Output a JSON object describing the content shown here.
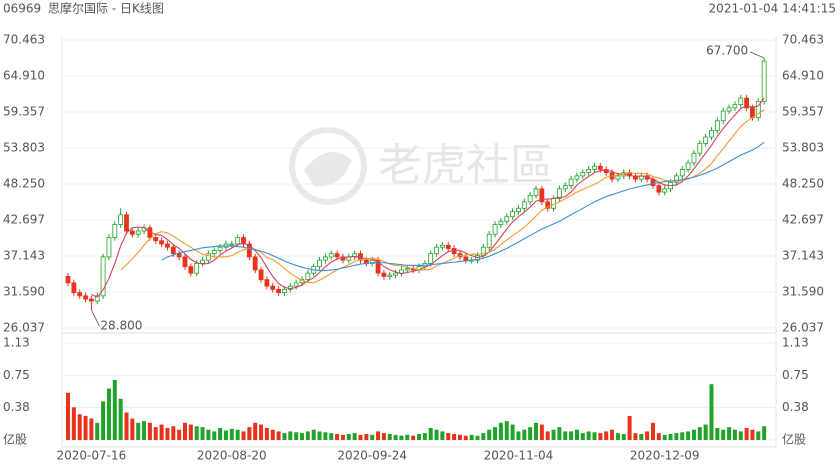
{
  "chart_data": {
    "type": "candlestick",
    "code": "06969",
    "title": "思摩尔国际 - 日K线图",
    "timestamp": "2021-01-04 14:41:15",
    "watermark": "老虎社區",
    "up_color": "#21a32b",
    "down_color": "#e8331c",
    "categories": [
      null,
      null,
      null,
      null,
      "2020-07-16",
      null,
      null,
      null,
      null,
      null,
      null,
      null,
      null,
      null,
      null,
      null,
      null,
      null,
      null,
      null,
      null,
      null,
      null,
      null,
      null,
      null,
      null,
      null,
      "2020-08-20",
      null,
      null,
      null,
      null,
      null,
      null,
      null,
      null,
      null,
      null,
      null,
      null,
      null,
      null,
      null,
      null,
      null,
      null,
      null,
      null,
      null,
      null,
      null,
      "2020-09-24",
      null,
      null,
      null,
      null,
      null,
      null,
      null,
      null,
      null,
      null,
      null,
      null,
      null,
      null,
      null,
      null,
      null,
      null,
      null,
      null,
      null,
      null,
      null,
      null,
      "2020-11-04",
      null,
      null,
      null,
      null,
      null,
      null,
      null,
      null,
      null,
      null,
      null,
      null,
      null,
      null,
      null,
      null,
      null,
      null,
      null,
      null,
      null,
      null,
      null,
      null,
      "2020-12-09",
      null,
      null,
      null,
      null,
      null,
      null,
      null,
      null,
      null,
      null,
      null,
      null,
      null,
      null,
      null,
      null,
      null
    ],
    "open": [
      34,
      33,
      31.5,
      31,
      30.5,
      30.2,
      31,
      37,
      40,
      42,
      43.5,
      41,
      40.5,
      41,
      41.5,
      40,
      39.5,
      39,
      38.5,
      37.5,
      37,
      35.5,
      34.5,
      36,
      36.5,
      37.5,
      38,
      38.5,
      39,
      39,
      40,
      39,
      37,
      35,
      33.5,
      32.5,
      32,
      31.5,
      32,
      32.5,
      33,
      33.5,
      34.5,
      35.5,
      36.5,
      37,
      37.5,
      37,
      36.5,
      37,
      37.5,
      36.5,
      36,
      36.5,
      34.5,
      34,
      34.2,
      34.5,
      35,
      35.2,
      35,
      35.5,
      36,
      37.5,
      38.5,
      38.8,
      38.3,
      37.5,
      37,
      36.5,
      36.5,
      37.2,
      38.5,
      40.5,
      42,
      42.5,
      43.2,
      44,
      44.5,
      45.5,
      46.5,
      47.5,
      45.5,
      44.5,
      46,
      47.5,
      48,
      49,
      49.5,
      50,
      50.5,
      51,
      50.5,
      50,
      49,
      49.5,
      50,
      49.5,
      49,
      49.5,
      49,
      48,
      47,
      47.5,
      48.5,
      49.5,
      50.5,
      51.5,
      53,
      54.5,
      55.5,
      56.5,
      58,
      59.5,
      60,
      60.5,
      61.5,
      60,
      58.5,
      61
    ],
    "high": [
      34.5,
      33.5,
      32,
      31.5,
      31,
      31.5,
      37.5,
      40.5,
      42.5,
      44.5,
      44,
      41.5,
      41.5,
      42,
      42,
      40.5,
      40,
      39.5,
      39,
      38,
      37.5,
      36,
      36.5,
      37,
      38,
      38.5,
      39,
      39.5,
      39.5,
      40.5,
      40.5,
      39.5,
      37.5,
      35.5,
      34,
      33,
      32.5,
      32.5,
      33,
      33.5,
      34,
      35,
      36,
      37,
      37.5,
      38,
      38,
      37.5,
      37.5,
      38,
      38,
      37,
      37,
      37,
      35,
      34.7,
      35,
      35.5,
      35.7,
      35.7,
      36,
      36.5,
      38,
      39,
      39.3,
      39.3,
      38.8,
      38,
      37.5,
      37,
      37.7,
      39,
      41,
      42.5,
      43,
      43.7,
      44.5,
      45,
      46,
      47,
      48,
      48,
      46,
      46.5,
      48,
      48.5,
      49.5,
      50,
      50.5,
      51,
      51.5,
      51.5,
      51,
      50.5,
      50,
      50.5,
      50.5,
      50,
      50,
      50,
      49.5,
      48.5,
      48,
      49,
      50,
      51,
      52,
      53.5,
      55,
      56,
      57,
      58.5,
      60,
      60.5,
      61,
      62,
      62,
      60.5,
      61.5,
      67.7
    ],
    "low": [
      32.5,
      31,
      30.5,
      30,
      28.8,
      29.7,
      30.5,
      36.5,
      39.5,
      41.5,
      40.5,
      40,
      40,
      40.5,
      39.5,
      39,
      38.5,
      38,
      37,
      36.5,
      35,
      34,
      34,
      35.5,
      36,
      37,
      37.5,
      38,
      38.5,
      38.5,
      38.5,
      36.5,
      34.5,
      33,
      32,
      31.5,
      31,
      31,
      31.5,
      32,
      32.5,
      33,
      34,
      35,
      36,
      36.5,
      36.5,
      36,
      36,
      36.5,
      36,
      35.5,
      35.5,
      34,
      33.5,
      33.5,
      33.7,
      34,
      34.5,
      34.5,
      34.5,
      35,
      35.5,
      37,
      38,
      37.8,
      37,
      36.5,
      36,
      36,
      36,
      36.7,
      38,
      40,
      41.5,
      42,
      42.7,
      43.5,
      44,
      45,
      46,
      45,
      44,
      44,
      45.5,
      47,
      47.5,
      48.5,
      49,
      49.5,
      50,
      50,
      49.5,
      48.5,
      48.5,
      49,
      49,
      48.5,
      48.5,
      48.5,
      47.5,
      46.5,
      46.5,
      47,
      48,
      49,
      50,
      51,
      52.5,
      54,
      55,
      56,
      57.5,
      59,
      59.5,
      60,
      59.5,
      58,
      58,
      60.5
    ],
    "close": [
      33,
      31.5,
      31,
      30.5,
      30.2,
      31,
      37,
      40,
      42,
      43.5,
      41,
      40.5,
      41,
      41.5,
      40,
      39.5,
      39,
      38.5,
      37.5,
      37,
      35.5,
      34.5,
      36,
      36.5,
      37.5,
      38,
      38.5,
      39,
      39,
      40,
      39,
      37,
      35,
      33.5,
      32.5,
      32,
      31.5,
      32,
      32.5,
      33,
      33.5,
      34.5,
      35.5,
      36.5,
      37,
      37.5,
      37,
      36.5,
      37,
      37.5,
      36.5,
      36,
      36.5,
      34.5,
      34,
      34.2,
      34.5,
      35,
      35.2,
      35,
      35.5,
      36,
      37.5,
      38.5,
      38.8,
      38.3,
      37.5,
      37,
      36.5,
      36.5,
      37.2,
      38.5,
      40.5,
      42,
      42.5,
      43.2,
      44,
      44.5,
      45.5,
      46.5,
      47.5,
      45.5,
      44.5,
      46,
      47.5,
      48,
      49,
      49.5,
      50,
      50.5,
      51,
      50.5,
      50,
      49,
      49.5,
      50,
      49.5,
      49,
      49.5,
      49,
      48,
      47,
      47.5,
      48.5,
      49.5,
      50.5,
      51.5,
      53,
      54.5,
      55.5,
      56.5,
      58,
      59.5,
      60,
      60.5,
      61.5,
      60,
      58.5,
      61,
      67.2
    ],
    "volume": [
      0.55,
      0.38,
      0.3,
      0.28,
      0.25,
      0.2,
      0.45,
      0.6,
      0.7,
      0.48,
      0.32,
      0.25,
      0.2,
      0.22,
      0.2,
      0.15,
      0.18,
      0.14,
      0.16,
      0.12,
      0.2,
      0.18,
      0.16,
      0.15,
      0.12,
      0.1,
      0.14,
      0.11,
      0.13,
      0.12,
      0.1,
      0.15,
      0.2,
      0.18,
      0.14,
      0.12,
      0.1,
      0.08,
      0.1,
      0.09,
      0.08,
      0.1,
      0.12,
      0.1,
      0.09,
      0.08,
      0.07,
      0.06,
      0.07,
      0.08,
      0.06,
      0.07,
      0.06,
      0.1,
      0.08,
      0.07,
      0.06,
      0.05,
      0.06,
      0.05,
      0.07,
      0.08,
      0.14,
      0.12,
      0.1,
      0.08,
      0.07,
      0.06,
      0.05,
      0.06,
      0.05,
      0.08,
      0.12,
      0.15,
      0.2,
      0.22,
      0.18,
      0.1,
      0.12,
      0.15,
      0.2,
      0.18,
      0.1,
      0.12,
      0.15,
      0.1,
      0.1,
      0.12,
      0.08,
      0.1,
      0.09,
      0.08,
      0.1,
      0.12,
      0.08,
      0.07,
      0.28,
      0.08,
      0.07,
      0.1,
      0.2,
      0.08,
      0.06,
      0.07,
      0.08,
      0.09,
      0.1,
      0.12,
      0.15,
      0.18,
      0.65,
      0.14,
      0.12,
      0.15,
      0.12,
      0.1,
      0.14,
      0.12,
      0.1,
      0.16
    ],
    "moving_averages": [
      {
        "color": "#d8405e",
        "values": [
          null,
          null,
          null,
          null,
          31.2,
          30.8,
          31.9,
          33.7,
          36,
          38.7,
          40.7,
          41.5,
          41.6,
          41.5,
          40.8,
          40.5,
          40.3,
          39.7,
          38.9,
          38.3,
          37.5,
          36.6,
          36.1,
          35.9,
          36,
          36.5,
          37.3,
          37.9,
          38.4,
          38.9,
          39.1,
          38.8,
          38,
          36.9,
          35.4,
          34,
          32.9,
          32.3,
          32.1,
          32.3,
          32.7,
          33.3,
          33.8,
          34.6,
          35.5,
          36.2,
          36.7,
          36.9,
          37,
          37.1,
          36.9,
          36.7,
          36.7,
          36.2,
          35.5,
          35,
          34.7,
          34.4,
          34.6,
          34.8,
          35,
          35.4,
          35.8,
          36.5,
          37.2,
          37.8,
          38.1,
          38,
          37.6,
          37.2,
          36.9,
          37.1,
          37.8,
          38.9,
          40.1,
          41.3,
          42.4,
          43.2,
          43.9,
          44.7,
          45.6,
          45.9,
          45.9,
          46,
          46.2,
          46.3,
          47,
          48.1,
          48.8,
          49.4,
          50,
          50.3,
          50.4,
          50.2,
          49.8,
          49.8,
          49.6,
          49.4,
          49.5,
          49.4,
          49,
          48.5,
          48.1,
          48,
          48.1,
          48.6,
          49.5,
          50.6,
          51.8,
          53,
          54.2,
          55.6,
          56.8,
          57.9,
          58.9,
          59.9,
          60.3,
          60.1,
          60.3,
          61.5
        ]
      },
      {
        "color": "#f39a2c",
        "values": [
          null,
          null,
          null,
          null,
          null,
          null,
          null,
          null,
          null,
          35,
          35.8,
          36.7,
          37.7,
          38.8,
          39.8,
          40.6,
          40.9,
          40.7,
          40.2,
          39.6,
          39,
          38.5,
          37.9,
          37.4,
          37.2,
          37,
          37,
          37,
          37.2,
          37.7,
          38.1,
          38.3,
          38.2,
          37.7,
          36.9,
          36.6,
          36,
          35.2,
          34.5,
          33.9,
          33.4,
          33.1,
          33,
          33.4,
          33.9,
          34.5,
          35,
          35.4,
          35.8,
          36.3,
          36.6,
          36.7,
          36.8,
          36.6,
          36.3,
          35.9,
          35.7,
          35.6,
          35.4,
          35.2,
          35,
          35,
          35.1,
          35.6,
          36,
          36.4,
          36.8,
          37.2,
          37.3,
          37.4,
          37.4,
          37.5,
          37.7,
          38.2,
          38.9,
          39.6,
          40.3,
          40.9,
          41.6,
          42.4,
          43.3,
          44.2,
          44.7,
          45.1,
          45.5,
          46,
          46.5,
          47,
          47.4,
          47.8,
          48.2,
          48.7,
          49.3,
          49.5,
          49.6,
          49.9,
          50,
          49.9,
          49.9,
          49.8,
          49.4,
          49.2,
          48.8,
          48.7,
          48.7,
          48.8,
          49,
          49.4,
          49.9,
          50.6,
          51.4,
          52.6,
          53.7,
          54.9,
          56,
          57.1,
          57.9,
          58.5,
          59.1,
          59.7
        ]
      },
      {
        "color": "#3b8fd8",
        "values": [
          null,
          null,
          null,
          null,
          null,
          null,
          null,
          null,
          null,
          null,
          null,
          null,
          null,
          null,
          null,
          null,
          36.5,
          37,
          37.3,
          37.6,
          37.8,
          38,
          38.2,
          38.4,
          38.5,
          38.6,
          38.7,
          38.7,
          38.7,
          38.6,
          38.5,
          38.3,
          38.1,
          37.9,
          37.6,
          37.2,
          36.8,
          36.4,
          36,
          35.7,
          35.4,
          35.2,
          35,
          34.9,
          34.9,
          35,
          35.1,
          35.3,
          35.5,
          35.7,
          35.9,
          36,
          36.1,
          36.1,
          36.1,
          36,
          35.9,
          35.8,
          35.7,
          35.7,
          35.7,
          35.7,
          35.8,
          35.9,
          36,
          36.1,
          36.2,
          36.3,
          36.4,
          36.5,
          36.6,
          36.8,
          37.1,
          37.5,
          37.9,
          38.3,
          38.8,
          39.3,
          39.8,
          40.3,
          40.8,
          41.3,
          41.7,
          42.1,
          42.5,
          43,
          43.5,
          44,
          44.5,
          45,
          45.5,
          45.9,
          46.3,
          46.6,
          46.9,
          47.2,
          47.5,
          47.7,
          47.9,
          48.1,
          48.3,
          48.5,
          48.6,
          48.7,
          48.8,
          48.9,
          49.1,
          49.3,
          49.6,
          49.9,
          50.3,
          50.7,
          51.2,
          51.7,
          52.2,
          52.7,
          53.1,
          53.5,
          54,
          54.7
        ]
      }
    ],
    "extreme_labels": {
      "high": "67.700",
      "low": "28.800"
    },
    "ylim": [
      26.037,
      70.463
    ],
    "yticks": [
      70.463,
      {
        "value": 64.91,
        "label": "64.910"
      },
      59.357,
      53.803,
      {
        "value": 48.25,
        "label": "48.250"
      },
      42.697,
      37.143,
      {
        "value": 31.59,
        "label": "31.590"
      },
      26.037
    ],
    "volume_ylim": [
      0,
      1.13
    ],
    "volume_yticks": [
      1.13,
      0.75,
      0.38,
      {
        "value": 0,
        "label": "亿股"
      }
    ],
    "grid": true
  }
}
